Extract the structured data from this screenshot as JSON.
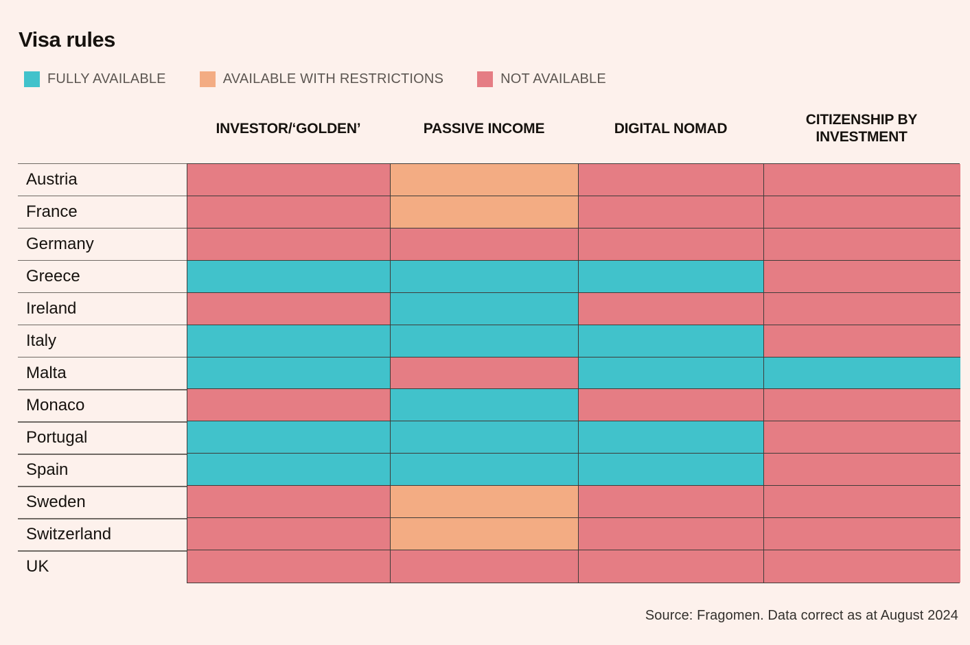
{
  "title": "Visa rules",
  "source": "Source: Fragomen. Data correct as at August 2024",
  "colors": {
    "background": "#fdf1ec",
    "grid_border": "#3e3b38",
    "full": "#41c2cb",
    "restricted": "#f3ac83",
    "none": "#e57d84"
  },
  "legend": [
    {
      "key": "full",
      "label": "FULLY AVAILABLE",
      "color": "#41c2cb"
    },
    {
      "key": "restricted",
      "label": "AVAILABLE WITH RESTRICTIONS",
      "color": "#f3ac83"
    },
    {
      "key": "none",
      "label": "NOT AVAILABLE",
      "color": "#e57d84"
    }
  ],
  "chart_data": {
    "type": "heatmap",
    "title": "Visa rules",
    "legend_position": "top",
    "columns": [
      "INVESTOR/‘GOLDEN’",
      "PASSIVE INCOME",
      "DIGITAL NOMAD",
      "CITIZENSHIP BY INVESTMENT"
    ],
    "rows": [
      "Austria",
      "France",
      "Germany",
      "Greece",
      "Ireland",
      "Italy",
      "Malta",
      "Monaco",
      "Portugal",
      "Spain",
      "Sweden",
      "Switzerland",
      "UK"
    ],
    "value_labels": {
      "full": "Fully available",
      "restricted": "Available with restrictions",
      "none": "Not available"
    },
    "values": [
      [
        "none",
        "restricted",
        "none",
        "none"
      ],
      [
        "none",
        "restricted",
        "none",
        "none"
      ],
      [
        "none",
        "none",
        "none",
        "none"
      ],
      [
        "full",
        "full",
        "full",
        "none"
      ],
      [
        "none",
        "full",
        "none",
        "none"
      ],
      [
        "full",
        "full",
        "full",
        "none"
      ],
      [
        "full",
        "none",
        "full",
        "full"
      ],
      [
        "none",
        "full",
        "none",
        "none"
      ],
      [
        "full",
        "full",
        "full",
        "none"
      ],
      [
        "full",
        "full",
        "full",
        "none"
      ],
      [
        "none",
        "restricted",
        "none",
        "none"
      ],
      [
        "none",
        "restricted",
        "none",
        "none"
      ],
      [
        "none",
        "none",
        "none",
        "none"
      ]
    ]
  }
}
